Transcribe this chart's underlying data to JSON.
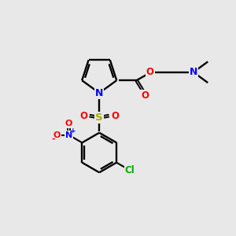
{
  "background_color": "#e8e8e8",
  "bond_color": "#000000",
  "atom_colors": {
    "N": "#0000ff",
    "O": "#ff0000",
    "S": "#aaaa00",
    "Cl": "#00aa00",
    "C": "#000000"
  },
  "figsize": [
    3.0,
    3.0
  ],
  "dpi": 100
}
